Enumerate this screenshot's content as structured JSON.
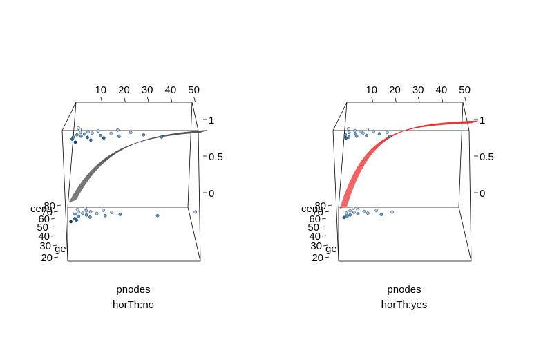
{
  "chart_data": [
    {
      "type": "scatter3d-surface",
      "title": "",
      "xlabel": "pnodes",
      "ylabel": "age",
      "zlabel": "cens",
      "panel_label": "horTh:no",
      "x_ticks": [
        "10",
        "20",
        "30",
        "40",
        "50"
      ],
      "y_ticks": [
        "20",
        "30",
        "40",
        "50",
        "60",
        "70",
        "80"
      ],
      "z_ticks": [
        "0",
        "0.5",
        "1"
      ],
      "xlim": [
        0,
        51
      ],
      "ylim": [
        21,
        80
      ],
      "zlim": [
        0,
        1
      ],
      "surface_color": "#555555",
      "surface_asymptote": 0.88,
      "surface_rate": 0.07,
      "surface_base": 0.1,
      "point_colors": [
        "#d8e6f2",
        "#a6c8e6",
        "#5a97cc",
        "#2266aa",
        "#0d3a66"
      ],
      "points": [
        {
          "pnodes": 1,
          "age": 45,
          "cens": 1
        },
        {
          "pnodes": 2,
          "age": 52,
          "cens": 1
        },
        {
          "pnodes": 3,
          "age": 60,
          "cens": 1
        },
        {
          "pnodes": 1,
          "age": 38,
          "cens": 1
        },
        {
          "pnodes": 4,
          "age": 48,
          "cens": 1
        },
        {
          "pnodes": 5,
          "age": 55,
          "cens": 1
        },
        {
          "pnodes": 6,
          "age": 62,
          "cens": 1
        },
        {
          "pnodes": 2,
          "age": 70,
          "cens": 1
        },
        {
          "pnodes": 7,
          "age": 44,
          "cens": 1
        },
        {
          "pnodes": 8,
          "age": 58,
          "cens": 1
        },
        {
          "pnodes": 9,
          "age": 35,
          "cens": 1
        },
        {
          "pnodes": 10,
          "age": 65,
          "cens": 1
        },
        {
          "pnodes": 12,
          "age": 50,
          "cens": 1
        },
        {
          "pnodes": 14,
          "age": 42,
          "cens": 1
        },
        {
          "pnodes": 16,
          "age": 57,
          "cens": 1
        },
        {
          "pnodes": 18,
          "age": 68,
          "cens": 1
        },
        {
          "pnodes": 20,
          "age": 47,
          "cens": 1
        },
        {
          "pnodes": 24,
          "age": 60,
          "cens": 1
        },
        {
          "pnodes": 30,
          "age": 52,
          "cens": 1
        },
        {
          "pnodes": 38,
          "age": 45,
          "cens": 1
        },
        {
          "pnodes": 3,
          "age": 28,
          "cens": 1
        },
        {
          "pnodes": 1,
          "age": 75,
          "cens": 1
        },
        {
          "pnodes": 1,
          "age": 55,
          "cens": 0
        },
        {
          "pnodes": 2,
          "age": 62,
          "cens": 0
        },
        {
          "pnodes": 3,
          "age": 48,
          "cens": 0
        },
        {
          "pnodes": 1,
          "age": 70,
          "cens": 0
        },
        {
          "pnodes": 4,
          "age": 58,
          "cens": 0
        },
        {
          "pnodes": 5,
          "age": 66,
          "cens": 0
        },
        {
          "pnodes": 2,
          "age": 40,
          "cens": 0
        },
        {
          "pnodes": 6,
          "age": 52,
          "cens": 0
        },
        {
          "pnodes": 7,
          "age": 63,
          "cens": 0
        },
        {
          "pnodes": 3,
          "age": 35,
          "cens": 0
        },
        {
          "pnodes": 8,
          "age": 45,
          "cens": 0
        },
        {
          "pnodes": 10,
          "age": 57,
          "cens": 0
        },
        {
          "pnodes": 12,
          "age": 68,
          "cens": 0
        },
        {
          "pnodes": 14,
          "age": 50,
          "cens": 0
        },
        {
          "pnodes": 16,
          "age": 61,
          "cens": 0
        },
        {
          "pnodes": 20,
          "age": 54,
          "cens": 0
        },
        {
          "pnodes": 4,
          "age": 74,
          "cens": 0
        },
        {
          "pnodes": 1,
          "age": 30,
          "cens": 0
        },
        {
          "pnodes": 36,
          "age": 50,
          "cens": 0
        },
        {
          "pnodes": 51,
          "age": 62,
          "cens": 0
        }
      ]
    },
    {
      "type": "scatter3d-surface",
      "title": "",
      "xlabel": "pnodes",
      "ylabel": "age",
      "zlabel": "cens",
      "panel_label": "horTh:yes",
      "x_ticks": [
        "10",
        "20",
        "30",
        "40",
        "50"
      ],
      "y_ticks": [
        "20",
        "30",
        "40",
        "50",
        "60",
        "70",
        "80"
      ],
      "z_ticks": [
        "0",
        "0.5",
        "1"
      ],
      "xlim": [
        0,
        51
      ],
      "ylim": [
        21,
        80
      ],
      "zlim": [
        0,
        1
      ],
      "surface_color": "#ee3333",
      "surface_asymptote": 0.97,
      "surface_rate": 0.1,
      "surface_base": 0.03,
      "point_colors": [
        "#d8e6f2",
        "#a6c8e6",
        "#5a97cc",
        "#2266aa",
        "#0d3a66"
      ],
      "points": [
        {
          "pnodes": 1,
          "age": 52,
          "cens": 1
        },
        {
          "pnodes": 2,
          "age": 60,
          "cens": 1
        },
        {
          "pnodes": 3,
          "age": 45,
          "cens": 1
        },
        {
          "pnodes": 4,
          "age": 66,
          "cens": 1
        },
        {
          "pnodes": 5,
          "age": 55,
          "cens": 1
        },
        {
          "pnodes": 6,
          "age": 48,
          "cens": 1
        },
        {
          "pnodes": 7,
          "age": 62,
          "cens": 1
        },
        {
          "pnodes": 8,
          "age": 58,
          "cens": 1
        },
        {
          "pnodes": 9,
          "age": 70,
          "cens": 1
        },
        {
          "pnodes": 10,
          "age": 50,
          "cens": 1
        },
        {
          "pnodes": 12,
          "age": 64,
          "cens": 1
        },
        {
          "pnodes": 15,
          "age": 56,
          "cens": 1
        },
        {
          "pnodes": 18,
          "age": 60,
          "cens": 1
        },
        {
          "pnodes": 20,
          "age": 47,
          "cens": 1
        },
        {
          "pnodes": 2,
          "age": 42,
          "cens": 1
        },
        {
          "pnodes": 1,
          "age": 72,
          "cens": 1
        },
        {
          "pnodes": 1,
          "age": 58,
          "cens": 0
        },
        {
          "pnodes": 2,
          "age": 66,
          "cens": 0
        },
        {
          "pnodes": 3,
          "age": 52,
          "cens": 0
        },
        {
          "pnodes": 4,
          "age": 61,
          "cens": 0
        },
        {
          "pnodes": 5,
          "age": 70,
          "cens": 0
        },
        {
          "pnodes": 6,
          "age": 56,
          "cens": 0
        },
        {
          "pnodes": 2,
          "age": 48,
          "cens": 0
        },
        {
          "pnodes": 8,
          "age": 64,
          "cens": 0
        },
        {
          "pnodes": 10,
          "age": 58,
          "cens": 0
        },
        {
          "pnodes": 13,
          "age": 67,
          "cens": 0
        },
        {
          "pnodes": 16,
          "age": 54,
          "cens": 0
        },
        {
          "pnodes": 20,
          "age": 62,
          "cens": 0
        },
        {
          "pnodes": 3,
          "age": 74,
          "cens": 0
        },
        {
          "pnodes": 1,
          "age": 44,
          "cens": 0
        }
      ]
    }
  ]
}
